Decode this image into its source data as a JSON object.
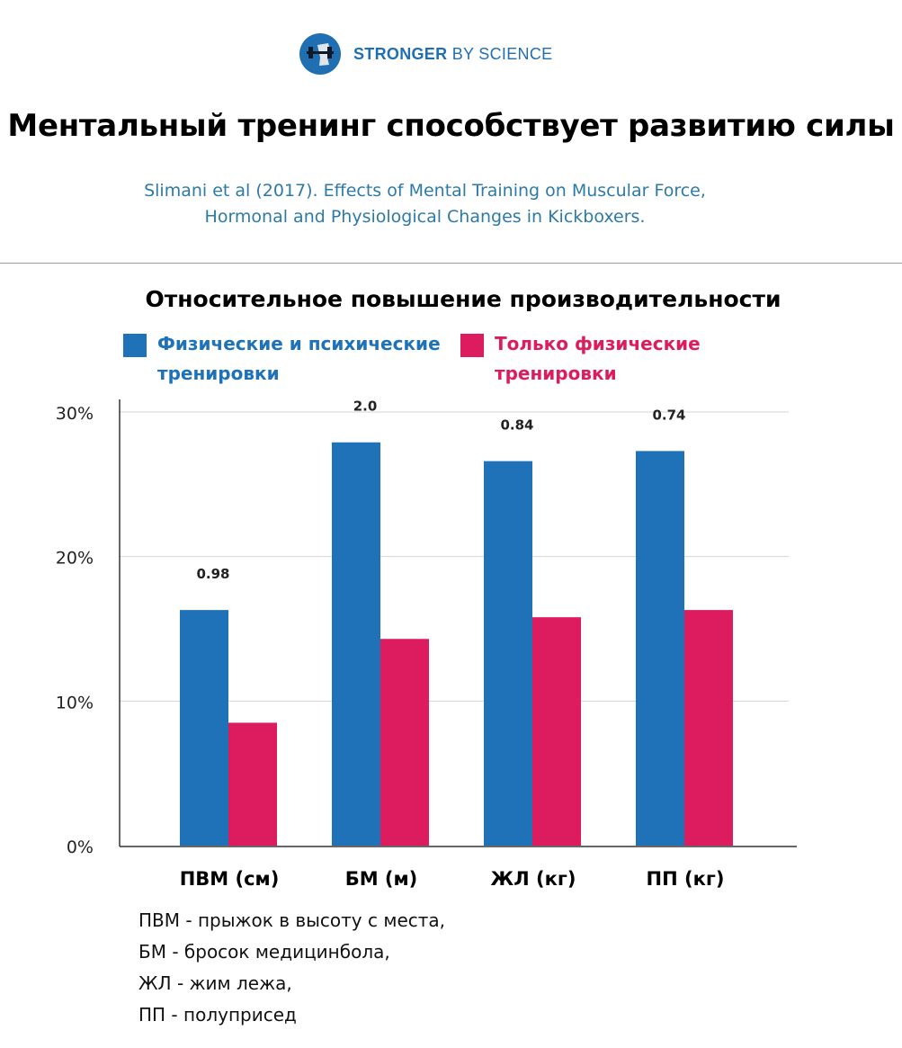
{
  "brand": {
    "name_bold": "STRONGER",
    "name_rest": "BY SCIENCE",
    "logo_icon": "barbell-logo-icon",
    "color": "#1f6fb2"
  },
  "title": "Ментальный тренинг способствует развитию силы",
  "citation": {
    "line1": "Slimani et al (2017). Effects of Mental Training on Muscular Force,",
    "line2": "Hormonal and Physiological Changes in Kickboxers."
  },
  "chart_data": {
    "type": "bar",
    "title": "Относительное повышение производительности",
    "categories": [
      "ПВМ (см)",
      "БМ (м)",
      "ЖЛ (кг)",
      "ПП (кг)"
    ],
    "series": [
      {
        "name": "Физические и психические тренировки",
        "name_lines": [
          "Физические и психические",
          "тренировки"
        ],
        "color": "#1f72b8",
        "values": [
          16.3,
          27.9,
          26.6,
          27.3
        ]
      },
      {
        "name": "Только физические тренировки",
        "name_lines": [
          "Только физические",
          "тренировки"
        ],
        "color": "#dc1c5e",
        "values": [
          8.5,
          14.3,
          15.8,
          16.3
        ]
      }
    ],
    "annotations": [
      "0.98",
      "2.0",
      "0.84",
      "0.74"
    ],
    "y_ticks": [
      "0%",
      "10%",
      "20%",
      "30%"
    ],
    "ylim": [
      0,
      30
    ],
    "y_unit": "%",
    "grid": true,
    "legend": "top"
  },
  "abbreviations": [
    "ПВМ - прыжок в высоту с места,",
    "БМ - бросок медицинбола,",
    "ЖЛ - жим лежа,",
    "ПП - полуприсед"
  ]
}
